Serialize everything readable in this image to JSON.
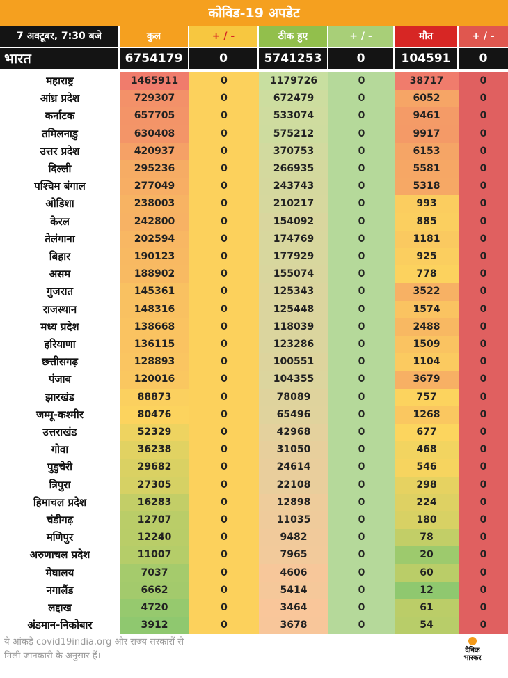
{
  "title": "कोविड-19 अपडेट",
  "header": {
    "date": "7 अक्टूबर, 7:30 बजे",
    "total": "कुल",
    "change1": "+ / -",
    "recovered": "ठीक हुए",
    "change2": "+ / -",
    "deaths": "मौत",
    "change3": "+ / -"
  },
  "india": {
    "name": "भारत",
    "total": "6754179",
    "change1": "0",
    "recovered": "5741253",
    "change2": "0",
    "deaths": "104591",
    "change3": "0"
  },
  "rows": [
    {
      "name": "महाराष्ट्र",
      "total": "1465911",
      "change1": "0",
      "recovered": "1179726",
      "change2": "0",
      "deaths": "38717",
      "change3": "0"
    },
    {
      "name": "आंध्र प्रदेश",
      "total": "729307",
      "change1": "0",
      "recovered": "672479",
      "change2": "0",
      "deaths": "6052",
      "change3": "0"
    },
    {
      "name": "कर्नाटक",
      "total": "657705",
      "change1": "0",
      "recovered": "533074",
      "change2": "0",
      "deaths": "9461",
      "change3": "0"
    },
    {
      "name": "तमिलनाडु",
      "total": "630408",
      "change1": "0",
      "recovered": "575212",
      "change2": "0",
      "deaths": "9917",
      "change3": "0"
    },
    {
      "name": "उत्तर प्रदेश",
      "total": "420937",
      "change1": "0",
      "recovered": "370753",
      "change2": "0",
      "deaths": "6153",
      "change3": "0"
    },
    {
      "name": "दिल्ली",
      "total": "295236",
      "change1": "0",
      "recovered": "266935",
      "change2": "0",
      "deaths": "5581",
      "change3": "0"
    },
    {
      "name": "पश्चिम बंगाल",
      "total": "277049",
      "change1": "0",
      "recovered": "243743",
      "change2": "0",
      "deaths": "5318",
      "change3": "0"
    },
    {
      "name": "ओडिशा",
      "total": "238003",
      "change1": "0",
      "recovered": "210217",
      "change2": "0",
      "deaths": "993",
      "change3": "0"
    },
    {
      "name": "केरल",
      "total": "242800",
      "change1": "0",
      "recovered": "154092",
      "change2": "0",
      "deaths": "885",
      "change3": "0"
    },
    {
      "name": "तेलंगाना",
      "total": "202594",
      "change1": "0",
      "recovered": "174769",
      "change2": "0",
      "deaths": "1181",
      "change3": "0"
    },
    {
      "name": "बिहार",
      "total": "190123",
      "change1": "0",
      "recovered": "177929",
      "change2": "0",
      "deaths": "925",
      "change3": "0"
    },
    {
      "name": "असम",
      "total": "188902",
      "change1": "0",
      "recovered": "155074",
      "change2": "0",
      "deaths": "778",
      "change3": "0"
    },
    {
      "name": "गुजरात",
      "total": "145361",
      "change1": "0",
      "recovered": "125343",
      "change2": "0",
      "deaths": "3522",
      "change3": "0"
    },
    {
      "name": "राजस्थान",
      "total": "148316",
      "change1": "0",
      "recovered": "125448",
      "change2": "0",
      "deaths": "1574",
      "change3": "0"
    },
    {
      "name": "मध्य प्रदेश",
      "total": "138668",
      "change1": "0",
      "recovered": "118039",
      "change2": "0",
      "deaths": "2488",
      "change3": "0"
    },
    {
      "name": "हरियाणा",
      "total": "136115",
      "change1": "0",
      "recovered": "123286",
      "change2": "0",
      "deaths": "1509",
      "change3": "0"
    },
    {
      "name": "छत्तीसगढ़",
      "total": "128893",
      "change1": "0",
      "recovered": "100551",
      "change2": "0",
      "deaths": "1104",
      "change3": "0"
    },
    {
      "name": "पंजाब",
      "total": "120016",
      "change1": "0",
      "recovered": "104355",
      "change2": "0",
      "deaths": "3679",
      "change3": "0"
    },
    {
      "name": "झारखंड",
      "total": "88873",
      "change1": "0",
      "recovered": "78089",
      "change2": "0",
      "deaths": "757",
      "change3": "0"
    },
    {
      "name": "जम्मू-कश्मीर",
      "total": "80476",
      "change1": "0",
      "recovered": "65496",
      "change2": "0",
      "deaths": "1268",
      "change3": "0"
    },
    {
      "name": "उत्तराखंड",
      "total": "52329",
      "change1": "0",
      "recovered": "42968",
      "change2": "0",
      "deaths": "677",
      "change3": "0"
    },
    {
      "name": "गोवा",
      "total": "36238",
      "change1": "0",
      "recovered": "31050",
      "change2": "0",
      "deaths": "468",
      "change3": "0"
    },
    {
      "name": "पुडुचेरी",
      "total": "29682",
      "change1": "0",
      "recovered": "24614",
      "change2": "0",
      "deaths": "546",
      "change3": "0"
    },
    {
      "name": "त्रिपुरा",
      "total": "27305",
      "change1": "0",
      "recovered": "22108",
      "change2": "0",
      "deaths": "298",
      "change3": "0"
    },
    {
      "name": "हिमाचल प्रदेश",
      "total": "16283",
      "change1": "0",
      "recovered": "12898",
      "change2": "0",
      "deaths": "224",
      "change3": "0"
    },
    {
      "name": "चंडीगढ़",
      "total": "12707",
      "change1": "0",
      "recovered": "11035",
      "change2": "0",
      "deaths": "180",
      "change3": "0"
    },
    {
      "name": "मणिपुर",
      "total": "12240",
      "change1": "0",
      "recovered": "9482",
      "change2": "0",
      "deaths": "78",
      "change3": "0"
    },
    {
      "name": "अरुणाचल प्रदेश",
      "total": "11007",
      "change1": "0",
      "recovered": "7965",
      "change2": "0",
      "deaths": "20",
      "change3": "0"
    },
    {
      "name": "मेघालय",
      "total": "7037",
      "change1": "0",
      "recovered": "4606",
      "change2": "0",
      "deaths": "60",
      "change3": "0"
    },
    {
      "name": "नगालैंड",
      "total": "6662",
      "change1": "0",
      "recovered": "5414",
      "change2": "0",
      "deaths": "12",
      "change3": "0"
    },
    {
      "name": "लद्दाख",
      "total": "4720",
      "change1": "0",
      "recovered": "3464",
      "change2": "0",
      "deaths": "61",
      "change3": "0"
    },
    {
      "name": "अंडमान-निकोबार",
      "total": "3912",
      "change1": "0",
      "recovered": "3678",
      "change2": "0",
      "deaths": "54",
      "change3": "0"
    }
  ],
  "colors": {
    "title_bg": "#f5a01f",
    "header_total": "#f5a01f",
    "header_change1": "#f7c740",
    "header_recovered": "#92bf4c",
    "header_change2": "#a8cf78",
    "header_deaths": "#d72624",
    "header_change3": "#e0574f",
    "change1_col": "#fcd15c",
    "change2_col": "#b5d99a",
    "change3_col": "#e06060"
  },
  "footer": {
    "line1": "ये आंकड़े covid19india.org और राज्य सरकारों से",
    "line2": "मिली जानकारी के अनुसार हैं।"
  },
  "logo": {
    "line1": "दैनिक",
    "line2": "भास्कर"
  }
}
